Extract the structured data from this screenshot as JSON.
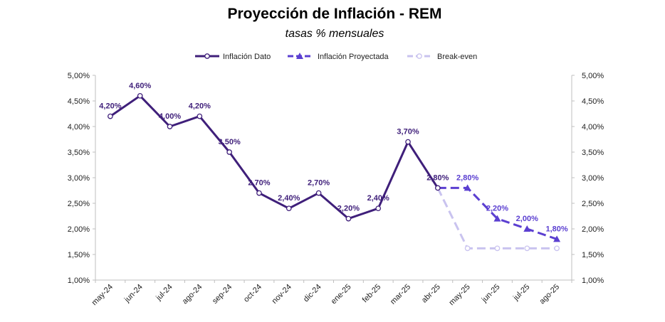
{
  "chart_data": {
    "type": "line",
    "title": "Proyección de Inflación - REM",
    "subtitle": "tasas % mensuales",
    "xlabel": "",
    "ylabel": "",
    "categories": [
      "may-24",
      "jun-24",
      "jul-24",
      "ago-24",
      "sep-24",
      "oct-24",
      "nov-24",
      "dic-24",
      "ene-25",
      "feb-25",
      "mar-25",
      "abr-25",
      "may-25",
      "jun-25",
      "jul-25",
      "ago-25"
    ],
    "ylim": [
      1.0,
      5.0
    ],
    "yticks": [
      1.0,
      1.5,
      2.0,
      2.5,
      3.0,
      3.5,
      4.0,
      4.5,
      5.0
    ],
    "ytick_labels": [
      "1,00%",
      "1,50%",
      "2,00%",
      "2,50%",
      "3,00%",
      "3,50%",
      "4,00%",
      "4,50%",
      "5,00%"
    ],
    "secondary_axis": true,
    "grid": false,
    "legend_position": "top",
    "series": [
      {
        "name": "Inflación Dato",
        "color": "#3f1f7a",
        "style": "solid",
        "marker": "circle",
        "values": [
          4.2,
          4.6,
          4.0,
          4.2,
          3.5,
          2.7,
          2.4,
          2.7,
          2.2,
          2.4,
          3.7,
          2.8,
          null,
          null,
          null,
          null
        ],
        "labels": [
          "4,20%",
          "4,60%",
          "4,00%",
          "4,20%",
          "3,50%",
          "2,70%",
          "2,40%",
          "2,70%",
          "2,20%",
          "2,40%",
          "3,70%",
          "2,80%",
          null,
          null,
          null,
          null
        ]
      },
      {
        "name": "Inflación Proyectada",
        "color": "#5b3fd1",
        "style": "dashed",
        "marker": "triangle",
        "values": [
          null,
          null,
          null,
          null,
          null,
          null,
          null,
          null,
          null,
          null,
          null,
          2.8,
          2.8,
          2.2,
          2.0,
          1.8
        ],
        "labels": [
          null,
          null,
          null,
          null,
          null,
          null,
          null,
          null,
          null,
          null,
          null,
          null,
          "2,80%",
          "2,20%",
          "2,00%",
          "1,80%"
        ]
      },
      {
        "name": "Break-even",
        "color": "#c9c3ef",
        "style": "dashed",
        "marker": "circle",
        "values": [
          null,
          null,
          null,
          null,
          null,
          null,
          null,
          null,
          null,
          null,
          null,
          2.8,
          1.62,
          1.62,
          1.62,
          1.62
        ],
        "labels": [
          null,
          null,
          null,
          null,
          null,
          null,
          null,
          null,
          null,
          null,
          null,
          null,
          null,
          null,
          null,
          null
        ]
      }
    ]
  }
}
